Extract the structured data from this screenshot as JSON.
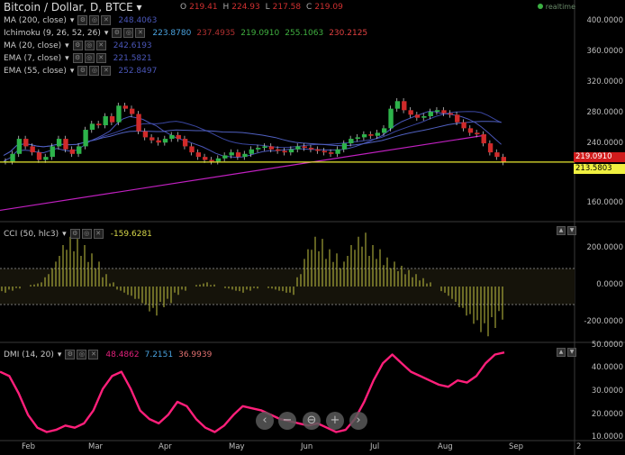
{
  "header": {
    "title": "Bitcoin / Dollar, D, BTCE",
    "ohlc": {
      "o_label": "O",
      "o": "219.41",
      "h_label": "H",
      "h": "224.93",
      "l_label": "L",
      "l": "217.58",
      "c_label": "C",
      "c": "219.09"
    },
    "realtime": "realtime"
  },
  "indicators": [
    {
      "name": "MA (200, close)",
      "values": [
        {
          "v": "248.4063",
          "color": "#4a56b8"
        }
      ]
    },
    {
      "name": "Ichimoku (9, 26, 52, 26)",
      "values": [
        {
          "v": "223.8780",
          "color": "#4aa3e0"
        },
        {
          "v": "237.4935",
          "color": "#b03030"
        },
        {
          "v": "219.0910",
          "color": "#40b040"
        },
        {
          "v": "255.1063",
          "color": "#40b040"
        },
        {
          "v": "230.2125",
          "color": "#e04040"
        }
      ]
    },
    {
      "name": "MA (20, close)",
      "values": [
        {
          "v": "242.6193",
          "color": "#4a56b8"
        }
      ]
    },
    {
      "name": "EMA (7, close)",
      "values": [
        {
          "v": "221.5821",
          "color": "#4a56b8"
        }
      ]
    },
    {
      "name": "EMA (55, close)",
      "values": [
        {
          "v": "252.8497",
          "color": "#4a56b8"
        }
      ]
    }
  ],
  "cci": {
    "name": "CCI (50, hlc3)",
    "value": "-159.6281",
    "color": "#d8d84a"
  },
  "dmi": {
    "name": "DMI (14, 20)",
    "values": [
      {
        "v": "48.4862",
        "color": "#e0207a"
      },
      {
        "v": "7.2151",
        "color": "#4aa3e0"
      },
      {
        "v": "36.9939",
        "color": "#e07070"
      }
    ]
  },
  "price_axis": [
    "400.0000",
    "360.0000",
    "320.0000",
    "280.0000",
    "240.0000",
    "160.0000"
  ],
  "price_tags": [
    {
      "v": "219.0910",
      "bg": "#d01c1c",
      "fg": "#ffffff"
    },
    {
      "v": "213.5803",
      "bg": "#f0f040",
      "fg": "#000000"
    }
  ],
  "cci_axis": [
    "200.0000",
    "0.0000",
    "-200.0000"
  ],
  "dmi_axis": [
    "50.0000",
    "40.0000",
    "30.0000",
    "20.0000",
    "10.0000"
  ],
  "time_axis": [
    "Feb",
    "Mar",
    "Apr",
    "May",
    "Jun",
    "Jul",
    "Aug",
    "Sep",
    "2"
  ],
  "zoom_controls": [
    "‹",
    "−",
    "⊖",
    "+",
    "›"
  ],
  "colors": {
    "up": "#2db34a",
    "down": "#d02a2a",
    "wick": "#dcdcdc",
    "hline": "#e8e830",
    "trend": "#c020c0",
    "ma": "#4a56b8",
    "cci": "#d8d84a",
    "dmi": "#ff1f7a"
  },
  "chart_data": {
    "type": "candlestick",
    "x_range": [
      "Jan",
      "Sep"
    ],
    "y_range": [
      140,
      420
    ],
    "close_series": [
      220,
      230,
      250,
      240,
      232,
      222,
      226,
      240,
      250,
      236,
      230,
      240,
      262,
      270,
      268,
      280,
      272,
      294,
      290,
      283,
      260,
      252,
      248,
      245,
      250,
      255,
      250,
      240,
      232,
      226,
      222,
      220,
      224,
      228,
      232,
      226,
      230,
      236,
      238,
      240,
      236,
      234,
      232,
      236,
      240,
      238,
      236,
      234,
      232,
      230,
      236,
      244,
      250,
      252,
      256,
      254,
      258,
      264,
      290,
      300,
      288,
      282,
      278,
      280,
      286,
      288,
      284,
      282,
      272,
      264,
      258,
      256,
      244,
      232,
      226,
      219
    ],
    "horizontal_line": 219.09,
    "cci_series": [
      -30,
      -20,
      -10,
      0,
      10,
      20,
      60,
      120,
      200,
      240,
      230,
      200,
      160,
      120,
      60,
      20,
      -20,
      -40,
      -60,
      -80,
      -120,
      -140,
      -100,
      -80,
      -40,
      -20,
      0,
      10,
      20,
      10,
      0,
      -10,
      -20,
      -30,
      -20,
      -10,
      0,
      -10,
      -20,
      -30,
      -40,
      60,
      180,
      240,
      230,
      180,
      160,
      120,
      200,
      240,
      260,
      200,
      180,
      140,
      120,
      100,
      80,
      60,
      40,
      20,
      0,
      -30,
      -60,
      -100,
      -140,
      -180,
      -220,
      -240,
      -200,
      -160
    ],
    "dmi_series": [
      40,
      38,
      30,
      20,
      14,
      12,
      13,
      15,
      14,
      16,
      22,
      32,
      38,
      40,
      32,
      22,
      18,
      16,
      20,
      26,
      24,
      18,
      14,
      12,
      15,
      20,
      24,
      23,
      22,
      20,
      18,
      17,
      16,
      15,
      16,
      14,
      12,
      13,
      18,
      26,
      36,
      44,
      48,
      44,
      40,
      38,
      36,
      34,
      33,
      36,
      35,
      38,
      44,
      48,
      49
    ]
  }
}
